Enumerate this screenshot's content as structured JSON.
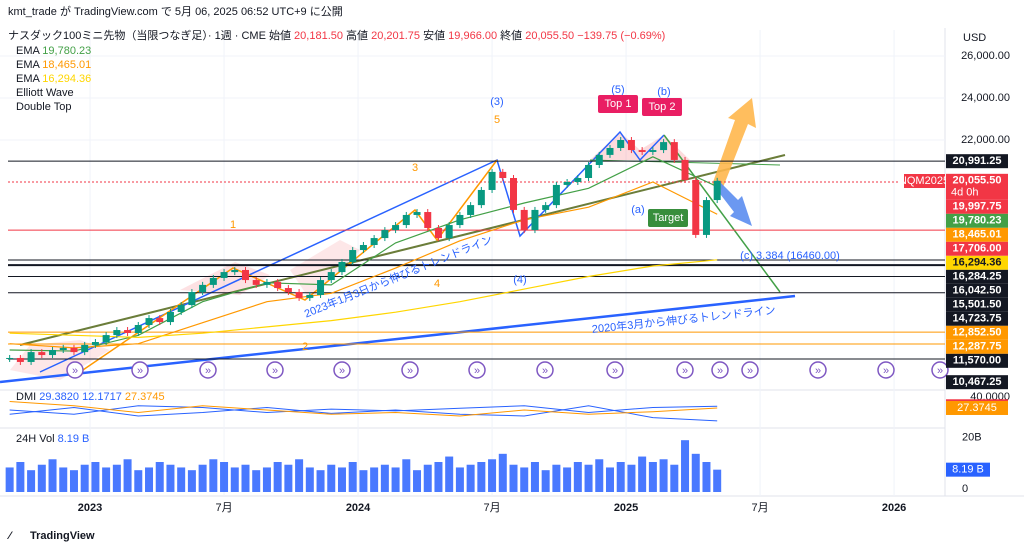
{
  "chart_data": {
    "type": "candlestick",
    "header": {
      "published": "kmt_trade が TradingView.com で 5月 06, 2025 06:52 UTC+9 に公開",
      "symbol": "ナスダック100ミニ先物（当限つなぎ足）· 1週 · CME",
      "ohlc": [
        {
          "name": "始値",
          "value": "20,181.50"
        },
        {
          "name": "高値",
          "value": "20,201.75"
        },
        {
          "name": "安値",
          "value": "19,966.00"
        },
        {
          "name": "終値",
          "value": "20,055.50"
        }
      ],
      "change": "−139.75 (−0.69%)"
    },
    "currency": "USD",
    "x": [
      2022.7,
      2022.74,
      2022.78,
      2022.82,
      2022.86,
      2022.9,
      2022.94,
      2022.98,
      2023.02,
      2023.06,
      2023.1,
      2023.14,
      2023.18,
      2023.22,
      2023.26,
      2023.3,
      2023.34,
      2023.38,
      2023.42,
      2023.46,
      2023.5,
      2023.54,
      2023.58,
      2023.62,
      2023.66,
      2023.7,
      2023.74,
      2023.78,
      2023.82,
      2023.86,
      2023.9,
      2023.94,
      2023.98,
      2024.02,
      2024.06,
      2024.1,
      2024.14,
      2024.18,
      2024.22,
      2024.26,
      2024.3,
      2024.34,
      2024.38,
      2024.42,
      2024.46,
      2024.5,
      2024.54,
      2024.58,
      2024.62,
      2024.66,
      2024.7,
      2024.74,
      2024.78,
      2024.82,
      2024.86,
      2024.9,
      2024.94,
      2024.98,
      2025.02,
      2025.06,
      2025.1,
      2025.14,
      2025.18,
      2025.22,
      2025.26,
      2025.3,
      2025.34
    ],
    "values": [
      11620,
      11430,
      11900,
      11760,
      12000,
      12100,
      11900,
      12240,
      12380,
      12710,
      12950,
      12810,
      13190,
      13520,
      13330,
      13810,
      14140,
      14760,
      15100,
      15430,
      15710,
      15810,
      15330,
      15100,
      15240,
      14950,
      14760,
      14480,
      14620,
      15330,
      15710,
      16190,
      16760,
      17000,
      17330,
      17710,
      17950,
      18430,
      18570,
      17810,
      17330,
      17950,
      18430,
      18900,
      19620,
      20480,
      20190,
      18670,
      17710,
      18670,
      18900,
      19860,
      20000,
      20190,
      20810,
      21290,
      21620,
      22000,
      21520,
      21430,
      21520,
      21900,
      21050,
      20100,
      17480,
      19140,
      20055.5
    ],
    "up_color": "#089981",
    "down_color": "#f23645",
    "xlim": [
      2022.664,
      2026.19
    ],
    "xticks": [
      {
        "value": 2023,
        "label": "2023"
      },
      {
        "value": 2023.5,
        "label": "7月"
      },
      {
        "value": 2024,
        "label": "2024"
      },
      {
        "value": 2024.5,
        "label": "7月"
      },
      {
        "value": 2025,
        "label": "2025"
      },
      {
        "value": 2025.5,
        "label": "7月"
      },
      {
        "value": 2026,
        "label": "2026"
      }
    ],
    "ylim": [
      10333,
      27238
    ],
    "yticks": [
      {
        "value": 22000,
        "label": "22,000.00"
      },
      {
        "value": 24000,
        "label": "24,000.00"
      },
      {
        "value": 26000,
        "label": "26,000.00"
      }
    ],
    "indicators": [
      {
        "name": "EMA",
        "color": "#43a047",
        "last": {
          "value": 19780.23,
          "label": "19,780.23"
        },
        "x": [
          2022.7,
          2022.94,
          2023.18,
          2023.42,
          2023.66,
          2023.9,
          2024.14,
          2024.38,
          2024.62,
          2024.86,
          2025.1,
          2025.34
        ],
        "values": [
          12000,
          11950,
          12700,
          14300,
          15200,
          15100,
          17100,
          18200,
          19000,
          19700,
          21200,
          19780.23
        ]
      },
      {
        "name": "EMA",
        "color": "#ff9800",
        "last": {
          "value": 18465.01,
          "label": "18,465.01"
        },
        "x": [
          2022.7,
          2022.94,
          2023.18,
          2023.42,
          2023.66,
          2023.9,
          2024.14,
          2024.38,
          2024.62,
          2024.86,
          2025.1,
          2025.34
        ],
        "values": [
          12300,
          12100,
          12300,
          13300,
          14300,
          14700,
          15900,
          17200,
          18200,
          18800,
          20000,
          18465.01
        ]
      },
      {
        "name": "EMA",
        "color": "#ffd600",
        "last": {
          "value": 16294.36,
          "label": "16,294.36"
        },
        "x": [
          2022.7,
          2022.94,
          2023.18,
          2023.42,
          2023.66,
          2023.9,
          2024.14,
          2024.38,
          2024.62,
          2024.86,
          2025.1,
          2025.34
        ],
        "values": [
          12800,
          12700,
          12600,
          12800,
          13100,
          13400,
          13800,
          14300,
          14900,
          15500,
          16000,
          16294.36
        ]
      }
    ],
    "legend_extra": [
      "Elliott Wave",
      "Double Top"
    ],
    "symbol_tag": "NQM2025",
    "countdown": "4d 0h",
    "price_tags": [
      {
        "value": 20991.25,
        "label": "20,991.25",
        "color": "#131722",
        "line": true
      },
      {
        "value": 20055.5,
        "label": "20,055.50",
        "color": "#f23645",
        "line": false
      },
      {
        "value": 19997.75,
        "label": "19,997.75",
        "color": "#f23645",
        "line": true
      },
      {
        "value": 19780.23,
        "label": "19,780.23",
        "color": "#43a047",
        "line": false
      },
      {
        "value": 18465.01,
        "label": "18,465.01",
        "color": "#ff9800",
        "line": false
      },
      {
        "value": 17706,
        "label": "17,706.00",
        "color": "#f23645",
        "line": true
      },
      {
        "value": 16294.36,
        "label": "16,294.36",
        "color": "#ffd600",
        "line": false
      },
      {
        "value": 16284.25,
        "label": "16,284.25",
        "color": "#131722",
        "line": true
      },
      {
        "value": 16042.5,
        "label": "16,042.50",
        "color": "#131722",
        "line": true
      },
      {
        "value": 15501.5,
        "label": "15,501.50",
        "color": "#131722",
        "line": true
      },
      {
        "value": 14723.75,
        "label": "14,723.75",
        "color": "#131722",
        "line": true
      },
      {
        "value": 12852.5,
        "label": "12,852.50",
        "color": "#ff9800",
        "line": true
      },
      {
        "value": 12287.75,
        "label": "12,287.75",
        "color": "#ff9800",
        "line": true
      },
      {
        "value": 11570,
        "label": "11,570.00",
        "color": "#131722",
        "line": true
      },
      {
        "value": 10467.25,
        "label": "10,467.25",
        "color": "#131722",
        "line": false
      }
    ],
    "annotations": [
      "(3)",
      "5",
      "3",
      "1",
      "4",
      "2",
      "(4)",
      "(5)",
      "(b)",
      "(a)",
      "(c) 3.384 (16460.00)",
      "Top 1",
      "Top 2",
      "Target",
      "2023年1月3日から伸びるトレンドライン",
      "2020年3月から伸びるトレンドライン"
    ],
    "dmi": {
      "label": "DMI",
      "ylim": [
        5,
        45
      ],
      "yticks": [
        {
          "value": 40,
          "label": "40.0000"
        }
      ],
      "series": [
        {
          "name": "29.3820",
          "color": "#2962ff",
          "tag_color": "#f23645",
          "last": 29.382,
          "x": [
            2022.7,
            2022.94,
            2023.18,
            2023.42,
            2023.66,
            2023.9,
            2024.14,
            2024.38,
            2024.62,
            2024.86,
            2025.1,
            2025.34
          ],
          "values": [
            25,
            20,
            30,
            28,
            22,
            26,
            24,
            27,
            30,
            22,
            28,
            29.382
          ]
        },
        {
          "name": "12.1717",
          "color": "#2962ff",
          "tag_color": null,
          "last": 12.1717,
          "x": [
            2022.7,
            2022.94,
            2023.18,
            2023.42,
            2023.66,
            2023.9,
            2024.14,
            2024.38,
            2024.62,
            2024.86,
            2025.1,
            2025.34
          ],
          "values": [
            20,
            28,
            18,
            22,
            28,
            21,
            25,
            20,
            18,
            30,
            16,
            12.1717
          ]
        },
        {
          "name": "27.3745",
          "color": "#ff9800",
          "tag_color": "#ff9800",
          "last": 27.3745,
          "x": [
            2022.7,
            2022.94,
            2023.18,
            2023.42,
            2023.66,
            2023.9,
            2024.14,
            2024.38,
            2024.62,
            2024.86,
            2025.1,
            2025.34
          ],
          "values": [
            35,
            30,
            22,
            30,
            25,
            20,
            22,
            18,
            25,
            20,
            23,
            27.3745
          ]
        }
      ]
    },
    "volume": {
      "label": "24H Vol",
      "color": "#2962ff",
      "values": [
        9,
        11,
        8,
        10,
        12,
        9,
        8,
        10,
        11,
        9,
        10,
        12,
        8,
        9,
        11,
        10,
        9,
        8,
        10,
        12,
        11,
        9,
        10,
        8,
        9,
        11,
        10,
        12,
        9,
        8,
        10,
        9,
        11,
        8,
        9,
        10,
        9,
        12,
        8,
        10,
        11,
        13,
        9,
        10,
        11,
        12,
        14,
        10,
        9,
        11,
        8,
        10,
        9,
        11,
        10,
        12,
        9,
        11,
        10,
        13,
        11,
        12,
        10,
        19,
        14,
        11,
        8.19
      ],
      "last": {
        "value": 8.19,
        "label": "8.19 B"
      },
      "ylim": [
        0,
        22
      ],
      "yticks": [
        0,
        {
          "value": 20,
          "label": "20B"
        }
      ]
    },
    "footer": "TradingView"
  }
}
